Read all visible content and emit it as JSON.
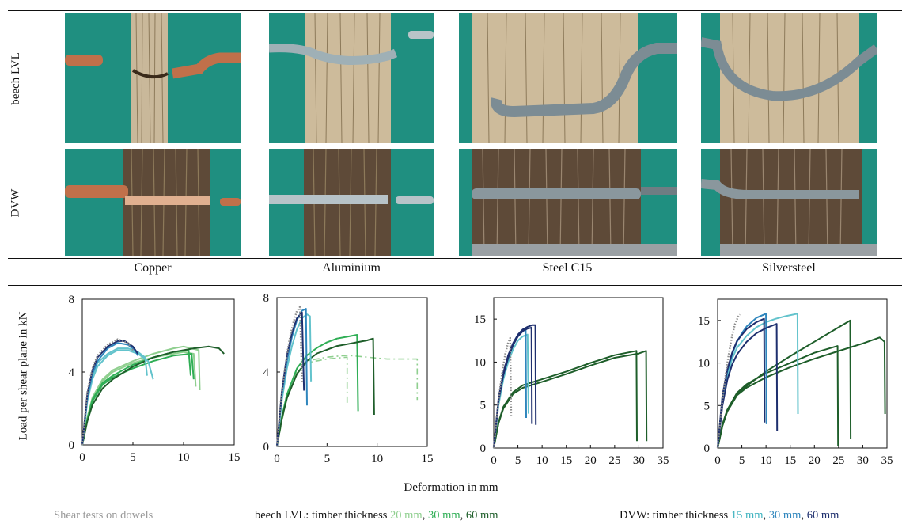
{
  "figure": {
    "row_labels": [
      "beech LVL",
      "DVW"
    ],
    "material_labels": [
      "Copper",
      "Aluminium",
      "Steel C15",
      "Silversteel"
    ],
    "y_axis_label": "Load per shear plane in kN",
    "x_axis_label": "Deformation in mm",
    "caption": {
      "left": "Shear tests on dowels",
      "lvl_prefix": "beech LVL: timber thickness ",
      "lvl_t1": "20 mm",
      "lvl_t2": "30 mm",
      "lvl_t3": "60 mm",
      "dvw_prefix": "DVW: timber thickness ",
      "dvw_t1": "15 mm",
      "dvw_t2": "30 mm",
      "dvw_t3": "60 mm",
      "sep": ", "
    },
    "colors": {
      "grid": "#111111",
      "background_teal": "#1f8f80",
      "lvl_20mm": "#8fcf8f",
      "lvl_30mm": "#2fae55",
      "lvl_60mm": "#1e5e2a",
      "dvw_15mm": "#63c3cc",
      "dvw_30mm": "#2f86bd",
      "dvw_60mm": "#1e2f6e",
      "reference_dotted": "#8c8c8c"
    },
    "photo_icons": [
      "copper-dowel-lvl",
      "aluminium-dowel-lvl",
      "steel-dowel-lvl",
      "silversteel-dowel-lvl",
      "copper-dowel-dvw",
      "aluminium-dowel-dvw",
      "steel-dowel-dvw",
      "silversteel-dowel-dvw"
    ]
  },
  "chart_data": [
    {
      "type": "line",
      "title": "Copper",
      "xlabel": "Deformation in mm",
      "ylabel": "Load per shear plane in kN",
      "xlim": [
        0,
        15
      ],
      "ylim": [
        0,
        8
      ],
      "xticks": [
        0,
        5,
        10,
        15
      ],
      "yticks": [
        0,
        4,
        8
      ],
      "series": [
        {
          "group": "lvl_20mm",
          "x": [
            0,
            0.5,
            1,
            2,
            3,
            5,
            7,
            9,
            10,
            11.5,
            11.6
          ],
          "y": [
            0,
            1.5,
            2.6,
            3.6,
            4.1,
            4.6,
            5.0,
            5.3,
            5.4,
            5.2,
            3.0
          ]
        },
        {
          "group": "lvl_20mm",
          "x": [
            0,
            0.5,
            1,
            2,
            3,
            5,
            7,
            9,
            10,
            11,
            11.2
          ],
          "y": [
            0,
            1.5,
            2.5,
            3.5,
            4.0,
            4.5,
            4.8,
            5.0,
            5.1,
            5.0,
            3.2
          ]
        },
        {
          "group": "lvl_30mm",
          "x": [
            0,
            0.5,
            1,
            2,
            3,
            5,
            7,
            9,
            10.5,
            10.7
          ],
          "y": [
            0,
            1.4,
            2.5,
            3.4,
            3.8,
            4.4,
            4.8,
            5.1,
            5.2,
            3.8
          ]
        },
        {
          "group": "lvl_30mm",
          "x": [
            0,
            0.5,
            1,
            2,
            3,
            5,
            7,
            9,
            10.8,
            11
          ],
          "y": [
            0,
            1.4,
            2.4,
            3.3,
            3.7,
            4.2,
            4.6,
            4.9,
            5.0,
            3.6
          ]
        },
        {
          "group": "lvl_60mm",
          "x": [
            0,
            0.5,
            1,
            2,
            3,
            5,
            7,
            9,
            11,
            12.5,
            13.5,
            14
          ],
          "y": [
            0,
            1.3,
            2.2,
            3.1,
            3.6,
            4.3,
            4.8,
            5.1,
            5.3,
            5.4,
            5.3,
            5.0
          ]
        },
        {
          "group": "dvw_15mm",
          "x": [
            0,
            0.5,
            1,
            1.5,
            2.5,
            3.5,
            4.5,
            5.5,
            6.2,
            6.4
          ],
          "y": [
            0,
            2.5,
            3.8,
            4.5,
            5.0,
            5.3,
            5.3,
            5.1,
            4.8,
            3.8
          ]
        },
        {
          "group": "dvw_15mm",
          "x": [
            0,
            0.5,
            1,
            1.5,
            2.5,
            3.5,
            4.5,
            5.5,
            6.5,
            7
          ],
          "y": [
            0,
            2.4,
            3.6,
            4.3,
            4.9,
            5.2,
            5.2,
            5.0,
            4.6,
            3.6
          ]
        },
        {
          "group": "dvw_30mm",
          "x": [
            0,
            0.5,
            1,
            1.5,
            2.5,
            3.5,
            4.5,
            5.2,
            5.5
          ],
          "y": [
            0,
            2.6,
            3.9,
            4.6,
            5.3,
            5.6,
            5.5,
            5.2,
            4.9
          ]
        },
        {
          "group": "dvw_60mm",
          "x": [
            0,
            0.5,
            1,
            1.5,
            2.5,
            3.5,
            4.2,
            5,
            5.5
          ],
          "y": [
            0,
            2.8,
            4.1,
            4.8,
            5.4,
            5.7,
            5.7,
            5.4,
            5.0
          ]
        },
        {
          "group": "reference_dotted",
          "dotted": true,
          "x": [
            0,
            0.5,
            1,
            1.5,
            2.5,
            3.5,
            4.5,
            5
          ],
          "y": [
            0,
            2.9,
            4.2,
            4.9,
            5.5,
            5.8,
            5.6,
            5.2
          ]
        }
      ]
    },
    {
      "type": "line",
      "title": "Aluminium",
      "xlabel": "Deformation in mm",
      "ylabel": "Load per shear plane in kN",
      "xlim": [
        0,
        15
      ],
      "ylim": [
        0,
        8
      ],
      "xticks": [
        0,
        5,
        10,
        15
      ],
      "yticks": [
        0,
        4,
        8
      ],
      "series": [
        {
          "group": "lvl_20mm",
          "dashed": true,
          "x": [
            0,
            1,
            2,
            3,
            5,
            7,
            9,
            11,
            13,
            14,
            14
          ],
          "y": [
            0,
            2.8,
            4.2,
            4.6,
            4.8,
            4.9,
            4.8,
            4.7,
            4.7,
            4.7,
            2.5
          ]
        },
        {
          "group": "lvl_20mm",
          "dashed": true,
          "x": [
            0,
            1,
            2,
            3,
            5,
            7,
            7,
            7
          ],
          "y": [
            0,
            2.7,
            4.0,
            4.5,
            4.7,
            4.8,
            4.8,
            2.3
          ]
        },
        {
          "group": "lvl_30mm",
          "x": [
            0,
            0.5,
            1,
            2,
            3,
            4,
            5,
            6,
            7,
            8,
            8.1
          ],
          "y": [
            0,
            1.6,
            2.8,
            4.2,
            4.9,
            5.3,
            5.6,
            5.8,
            5.9,
            6.0,
            1.9
          ]
        },
        {
          "group": "lvl_60mm",
          "x": [
            0,
            0.5,
            1,
            2,
            3,
            4,
            5,
            6,
            7,
            8,
            9,
            9.6,
            9.7
          ],
          "y": [
            0,
            1.5,
            2.6,
            3.9,
            4.6,
            5.0,
            5.2,
            5.4,
            5.5,
            5.6,
            5.7,
            5.8,
            1.7
          ]
        },
        {
          "group": "dvw_15mm",
          "x": [
            0,
            0.5,
            1,
            1.5,
            2,
            2.5,
            3,
            3.3,
            3.4
          ],
          "y": [
            0,
            2.5,
            4.2,
            5.4,
            6.3,
            6.9,
            7.1,
            7.0,
            3.5
          ]
        },
        {
          "group": "dvw_30mm",
          "x": [
            0,
            0.5,
            1,
            1.5,
            2,
            2.5,
            2.9,
            3.0
          ],
          "y": [
            0,
            2.8,
            4.6,
            5.9,
            6.8,
            7.3,
            7.4,
            2.2
          ]
        },
        {
          "group": "dvw_60mm",
          "x": [
            0,
            0.5,
            1,
            1.5,
            2,
            2.5,
            2.7
          ],
          "y": [
            0,
            3.0,
            4.9,
            6.1,
            6.9,
            7.2,
            3.0
          ]
        },
        {
          "group": "reference_dotted",
          "dotted": true,
          "x": [
            0,
            0.4,
            0.8,
            1.2,
            1.6,
            2,
            2.3,
            2.5
          ],
          "y": [
            0,
            2.5,
            4.2,
            5.6,
            6.6,
            7.3,
            7.5,
            3.5
          ]
        }
      ]
    },
    {
      "type": "line",
      "title": "Steel C15",
      "xlabel": "Deformation in mm",
      "ylabel": "Load per shear plane in kN",
      "xlim": [
        0,
        35
      ],
      "ylim": [
        0,
        17.5
      ],
      "xticks": [
        0,
        5,
        10,
        15,
        20,
        25,
        30,
        35
      ],
      "yticks": [
        0,
        5,
        10,
        15
      ],
      "series": [
        {
          "group": "lvl_60mm",
          "x": [
            0,
            1,
            2,
            4,
            6,
            10,
            15,
            20,
            25,
            29.5,
            29.6
          ],
          "y": [
            0,
            3.0,
            4.8,
            6.5,
            7.3,
            8.0,
            8.9,
            9.9,
            10.8,
            11.3,
            0.8
          ]
        },
        {
          "group": "lvl_60mm",
          "x": [
            0,
            1,
            2,
            4,
            6,
            10,
            15,
            20,
            25,
            30,
            31.5,
            31.6
          ],
          "y": [
            0,
            2.9,
            4.6,
            6.3,
            7.0,
            7.7,
            8.6,
            9.6,
            10.5,
            11.0,
            11.3,
            0.8
          ]
        },
        {
          "group": "dvw_15mm",
          "x": [
            0,
            1,
            2,
            3,
            4,
            5,
            6,
            7,
            7.2
          ],
          "y": [
            0,
            5.0,
            8.0,
            10.0,
            11.5,
            12.5,
            13.0,
            13.2,
            4.0
          ]
        },
        {
          "group": "dvw_30mm",
          "x": [
            0,
            1,
            2,
            3,
            4,
            5,
            6,
            6.6,
            6.7
          ],
          "y": [
            0,
            5.5,
            8.5,
            10.5,
            12.0,
            13.0,
            13.6,
            13.8,
            3.5
          ]
        },
        {
          "group": "dvw_60mm",
          "x": [
            0,
            1,
            2,
            3,
            4,
            5,
            6,
            7,
            8,
            8.6,
            8.7
          ],
          "y": [
            0,
            5.8,
            8.8,
            10.8,
            12.2,
            13.2,
            13.8,
            14.1,
            14.3,
            14.3,
            2.7
          ]
        },
        {
          "group": "dvw_60mm",
          "x": [
            0,
            1,
            2,
            3,
            4,
            5,
            6,
            7,
            7.8,
            7.9
          ],
          "y": [
            0,
            5.5,
            8.5,
            10.5,
            12.0,
            13.0,
            13.6,
            13.9,
            14.0,
            2.8
          ]
        },
        {
          "group": "reference_dotted",
          "dotted": true,
          "x": [
            0,
            0.6,
            1.2,
            1.8,
            2.4,
            3,
            3.4,
            3.6
          ],
          "y": [
            0,
            3.5,
            6.5,
            9.0,
            11.0,
            12.3,
            12.8,
            3.8
          ]
        }
      ]
    },
    {
      "type": "line",
      "title": "Silversteel",
      "xlabel": "Deformation in mm",
      "ylabel": "Load per shear plane in kN",
      "xlim": [
        0,
        35
      ],
      "ylim": [
        0,
        17.5
      ],
      "xticks": [
        0,
        5,
        10,
        15,
        20,
        25,
        30,
        35
      ],
      "yticks": [
        0,
        5,
        10,
        15
      ],
      "series": [
        {
          "group": "lvl_60mm",
          "x": [
            0,
            1,
            2,
            4,
            6,
            10,
            15,
            20,
            24.8,
            24.9
          ],
          "y": [
            0,
            2.8,
            4.5,
            6.5,
            7.5,
            8.8,
            10.0,
            11.2,
            12.0,
            0.2
          ]
        },
        {
          "group": "lvl_60mm",
          "x": [
            0,
            1,
            2,
            4,
            6,
            10,
            15,
            20,
            25,
            27.4,
            27.5
          ],
          "y": [
            0,
            2.7,
            4.4,
            6.3,
            7.3,
            9.0,
            10.8,
            12.5,
            14.2,
            15.0,
            1.1
          ]
        },
        {
          "group": "lvl_60mm",
          "x": [
            0,
            1,
            2,
            4,
            6,
            10,
            15,
            20,
            25,
            30,
            33.5,
            34.5,
            34.6
          ],
          "y": [
            0,
            2.6,
            4.3,
            6.2,
            7.1,
            8.3,
            9.5,
            10.5,
            11.4,
            12.3,
            13.0,
            12.5,
            4.0
          ]
        },
        {
          "group": "dvw_15mm",
          "x": [
            0,
            1,
            2,
            3,
            4,
            6,
            8,
            10,
            12,
            14,
            16.5,
            16.6
          ],
          "y": [
            0,
            5.5,
            8.5,
            10.5,
            11.8,
            13.2,
            14.2,
            14.8,
            15.2,
            15.5,
            15.8,
            4.0
          ]
        },
        {
          "group": "dvw_30mm",
          "x": [
            0,
            1,
            2,
            3,
            4,
            5,
            6,
            8,
            10,
            10.1
          ],
          "y": [
            0,
            6.0,
            9.0,
            11.0,
            12.5,
            13.5,
            14.3,
            15.3,
            15.8,
            2.8
          ]
        },
        {
          "group": "dvw_60mm",
          "x": [
            0,
            1,
            2,
            3,
            4,
            6,
            8,
            9.6,
            9.7
          ],
          "y": [
            0,
            6.2,
            9.2,
            11.2,
            12.6,
            14.0,
            14.8,
            15.2,
            3.0
          ]
        },
        {
          "group": "dvw_60mm",
          "x": [
            0,
            1,
            2,
            3,
            4,
            6,
            8,
            10,
            12.2,
            12.3
          ],
          "y": [
            0,
            5.0,
            8.0,
            9.8,
            11.0,
            12.5,
            13.5,
            14.1,
            14.6,
            2.0
          ]
        },
        {
          "group": "reference_dotted",
          "dotted": true,
          "x": [
            0,
            0.6,
            1.2,
            1.8,
            2.4,
            3,
            3.6,
            4.2,
            4.6
          ],
          "y": [
            0,
            3.5,
            6.6,
            9.2,
            11.4,
            13.2,
            14.6,
            15.4,
            15.7
          ]
        }
      ]
    }
  ]
}
